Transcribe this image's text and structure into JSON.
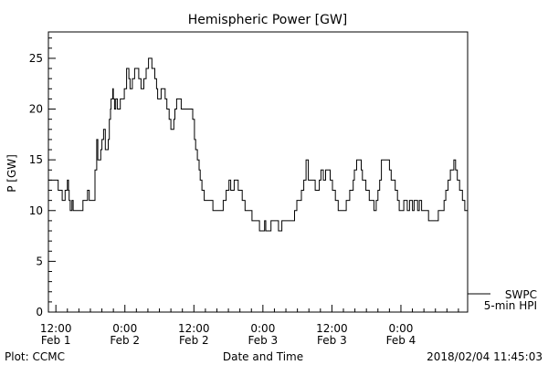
{
  "chart_data": {
    "type": "line",
    "title": "Hemispheric Power [GW]",
    "xlabel": "Date and Time",
    "ylabel": "P [GW]",
    "x_units": "hours since Feb 1 00:00",
    "xlim": [
      10.7,
      83.6
    ],
    "ylim": [
      0,
      27.6
    ],
    "grid": false,
    "y_ticks": [
      0,
      5,
      10,
      15,
      20,
      25
    ],
    "y_tick_labels": [
      "0",
      "5",
      "10",
      "15",
      "20",
      "25"
    ],
    "x_ticks": [
      12,
      24,
      36,
      48,
      60,
      72
    ],
    "x_tick_labels": [
      [
        "12:00",
        "Feb 1"
      ],
      [
        "0:00",
        "Feb 2"
      ],
      [
        "12:00",
        "Feb 2"
      ],
      [
        "0:00",
        "Feb 3"
      ],
      [
        "12:00",
        "Feb 3"
      ],
      [
        "0:00",
        "Feb 4"
      ]
    ],
    "legend": {
      "placement": "bottom-right outside",
      "entries": [
        "SWPC",
        "5-min HPI"
      ]
    },
    "footer_left": "Plot: CCMC",
    "footer_right": "2018/02/04 11:45:03",
    "series": [
      {
        "name": "SWPC 5-min HPI",
        "step": true,
        "points": [
          [
            10.7,
            13
          ],
          [
            12.4,
            12
          ],
          [
            13.1,
            11
          ],
          [
            13.6,
            12
          ],
          [
            14.0,
            13
          ],
          [
            14.2,
            12
          ],
          [
            14.3,
            11
          ],
          [
            14.5,
            10
          ],
          [
            14.8,
            11
          ],
          [
            15.0,
            10
          ],
          [
            16.7,
            11
          ],
          [
            17.5,
            12
          ],
          [
            17.8,
            11
          ],
          [
            18.8,
            14
          ],
          [
            19.1,
            17
          ],
          [
            19.3,
            15
          ],
          [
            19.8,
            16
          ],
          [
            20.0,
            17
          ],
          [
            20.3,
            18
          ],
          [
            20.6,
            16
          ],
          [
            21.1,
            17
          ],
          [
            21.3,
            19
          ],
          [
            21.5,
            20
          ],
          [
            21.6,
            21
          ],
          [
            21.9,
            22
          ],
          [
            22.0,
            21
          ],
          [
            22.2,
            20
          ],
          [
            22.4,
            21
          ],
          [
            22.7,
            20
          ],
          [
            23.2,
            21
          ],
          [
            23.9,
            22
          ],
          [
            24.3,
            24
          ],
          [
            24.7,
            23
          ],
          [
            24.9,
            22
          ],
          [
            25.3,
            23
          ],
          [
            25.7,
            24
          ],
          [
            26.4,
            23
          ],
          [
            26.8,
            22
          ],
          [
            27.3,
            23
          ],
          [
            27.7,
            24
          ],
          [
            28.1,
            25
          ],
          [
            28.7,
            24
          ],
          [
            29.2,
            23
          ],
          [
            29.5,
            22
          ],
          [
            29.7,
            21
          ],
          [
            30.3,
            22
          ],
          [
            31.0,
            21
          ],
          [
            31.3,
            20
          ],
          [
            31.7,
            19
          ],
          [
            32.0,
            18
          ],
          [
            32.5,
            19
          ],
          [
            32.7,
            20
          ],
          [
            33.0,
            21
          ],
          [
            33.8,
            20
          ],
          [
            35.8,
            19
          ],
          [
            36.1,
            17
          ],
          [
            36.3,
            16
          ],
          [
            36.6,
            15
          ],
          [
            36.9,
            14
          ],
          [
            37.1,
            13
          ],
          [
            37.4,
            12
          ],
          [
            37.8,
            11
          ],
          [
            39.3,
            10
          ],
          [
            41.1,
            11
          ],
          [
            41.6,
            12
          ],
          [
            42.1,
            13
          ],
          [
            42.4,
            12
          ],
          [
            43.0,
            13
          ],
          [
            43.7,
            12
          ],
          [
            44.4,
            11
          ],
          [
            44.9,
            10
          ],
          [
            46.1,
            9
          ],
          [
            47.4,
            8
          ],
          [
            48.3,
            9
          ],
          [
            48.5,
            8
          ],
          [
            49.4,
            9
          ],
          [
            50.7,
            8
          ],
          [
            51.3,
            9
          ],
          [
            53.5,
            10
          ],
          [
            53.9,
            11
          ],
          [
            54.7,
            12
          ],
          [
            55.1,
            13
          ],
          [
            55.5,
            15
          ],
          [
            55.9,
            13
          ],
          [
            57.1,
            12
          ],
          [
            57.8,
            13
          ],
          [
            58.1,
            14
          ],
          [
            58.5,
            13
          ],
          [
            58.9,
            14
          ],
          [
            59.7,
            13
          ],
          [
            60.1,
            12
          ],
          [
            60.6,
            11
          ],
          [
            61.1,
            10
          ],
          [
            62.5,
            11
          ],
          [
            63.1,
            12
          ],
          [
            63.7,
            13
          ],
          [
            63.9,
            14
          ],
          [
            64.3,
            15
          ],
          [
            65.1,
            14
          ],
          [
            65.3,
            13
          ],
          [
            65.9,
            12
          ],
          [
            66.5,
            11
          ],
          [
            67.3,
            10
          ],
          [
            67.7,
            11
          ],
          [
            68.0,
            12
          ],
          [
            68.3,
            13
          ],
          [
            68.6,
            15
          ],
          [
            70.0,
            14
          ],
          [
            70.3,
            13
          ],
          [
            71.0,
            12
          ],
          [
            71.4,
            11
          ],
          [
            71.7,
            10
          ],
          [
            72.5,
            11
          ],
          [
            73.1,
            10
          ],
          [
            73.5,
            11
          ],
          [
            74.0,
            10
          ],
          [
            74.3,
            11
          ],
          [
            74.9,
            10
          ],
          [
            75.2,
            11
          ],
          [
            75.6,
            10
          ],
          [
            76.8,
            9
          ],
          [
            78.5,
            10
          ],
          [
            79.5,
            11
          ],
          [
            79.8,
            12
          ],
          [
            80.2,
            13
          ],
          [
            80.6,
            14
          ],
          [
            81.2,
            15
          ],
          [
            81.5,
            14
          ],
          [
            81.8,
            13
          ],
          [
            82.2,
            12
          ],
          [
            82.7,
            11
          ],
          [
            83.1,
            10
          ],
          [
            83.6,
            10
          ]
        ]
      }
    ]
  }
}
